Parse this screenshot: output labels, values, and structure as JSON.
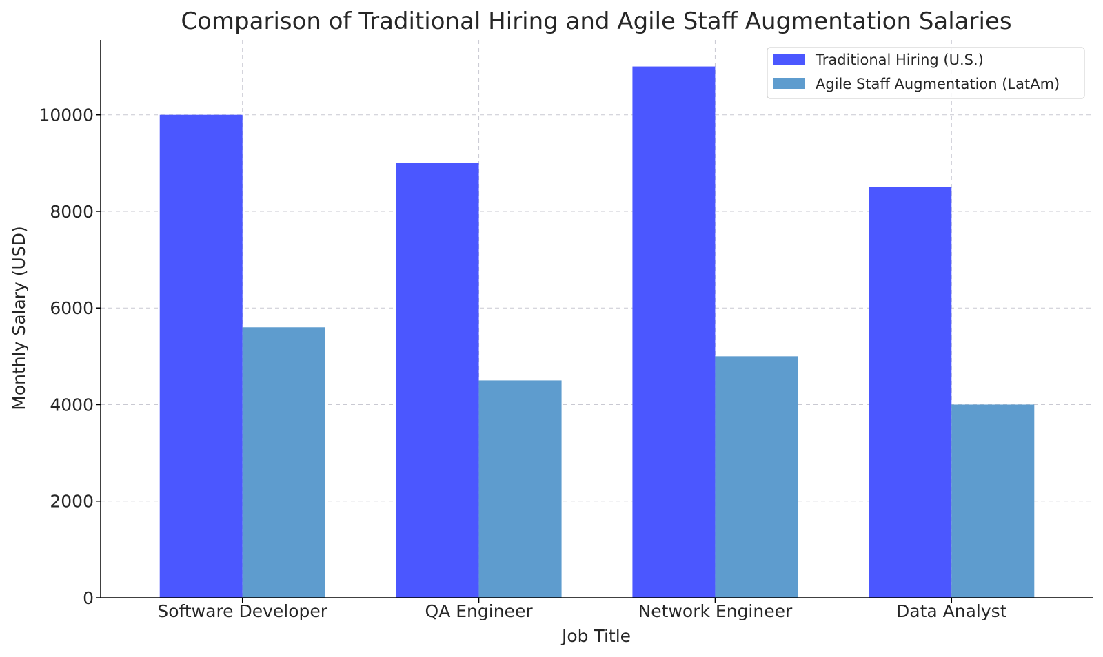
{
  "chart_data": {
    "type": "bar",
    "title": "Comparison of Traditional Hiring and Agile Staff Augmentation Salaries",
    "xlabel": "Job Title",
    "ylabel": "Monthly Salary (USD)",
    "categories": [
      "Software Developer",
      "QA Engineer",
      "Network Engineer",
      "Data Analyst"
    ],
    "series": [
      {
        "name": "Traditional Hiring (U.S.)",
        "color": "#4b57ff",
        "values": [
          10000,
          9000,
          11000,
          8500
        ]
      },
      {
        "name": "Agile Staff Augmentation (LatAm)",
        "color": "#5e9cce",
        "values": [
          5600,
          4500,
          5000,
          4000
        ]
      }
    ],
    "ylim": [
      0,
      11550
    ],
    "yticks": [
      0,
      2000,
      4000,
      6000,
      8000,
      10000
    ],
    "grid": true,
    "legend_position": "top-right"
  }
}
